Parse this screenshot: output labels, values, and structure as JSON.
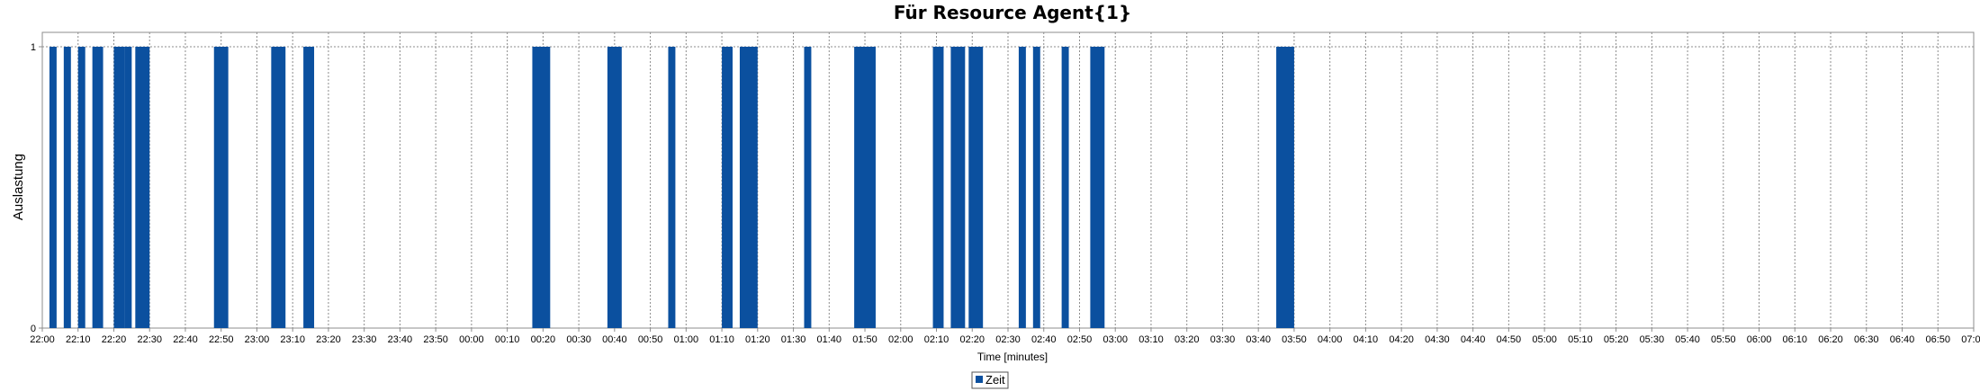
{
  "chart_data": {
    "type": "bar",
    "title": "Für Resource Agent{1}",
    "xlabel": "Time [minutes]",
    "ylabel": "Auslastung",
    "ylim": [
      0,
      1
    ],
    "yticks": [
      "0",
      "1"
    ],
    "x_ticks": [
      "22:00",
      "22:10",
      "22:20",
      "22:30",
      "22:40",
      "22:50",
      "23:00",
      "23:10",
      "23:20",
      "23:30",
      "23:40",
      "23:50",
      "00:00",
      "00:10",
      "00:20",
      "00:30",
      "00:40",
      "00:50",
      "01:00",
      "01:10",
      "01:20",
      "01:30",
      "01:40",
      "01:50",
      "02:00",
      "02:10",
      "02:20",
      "02:30",
      "02:40",
      "02:50",
      "03:00",
      "03:10",
      "03:20",
      "03:30",
      "03:40",
      "03:50",
      "04:00",
      "04:10",
      "04:20",
      "04:30",
      "04:40",
      "04:50",
      "05:00",
      "05:10",
      "05:20",
      "05:30",
      "05:40",
      "05:50",
      "06:00",
      "06:10",
      "06:20",
      "06:30",
      "06:40",
      "06:50",
      "07:00"
    ],
    "grid": true,
    "legend_position": "bottom-center",
    "series": [
      {
        "name": "Zeit",
        "color": "#0b509f",
        "bars": [
          {
            "start": "22:02",
            "end": "22:04",
            "value": 1
          },
          {
            "start": "22:06",
            "end": "22:08",
            "value": 1
          },
          {
            "start": "22:10",
            "end": "22:12",
            "value": 1
          },
          {
            "start": "22:14",
            "end": "22:17",
            "value": 1
          },
          {
            "start": "22:20",
            "end": "22:23",
            "value": 1
          },
          {
            "start": "22:23",
            "end": "22:25",
            "value": 1
          },
          {
            "start": "22:26",
            "end": "22:30",
            "value": 1
          },
          {
            "start": "22:48",
            "end": "22:52",
            "value": 1
          },
          {
            "start": "23:04",
            "end": "23:08",
            "value": 1
          },
          {
            "start": "23:13",
            "end": "23:16",
            "value": 1
          },
          {
            "start": "00:17",
            "end": "00:22",
            "value": 1
          },
          {
            "start": "00:38",
            "end": "00:42",
            "value": 1
          },
          {
            "start": "00:55",
            "end": "00:57",
            "value": 1
          },
          {
            "start": "01:10",
            "end": "01:13",
            "value": 1
          },
          {
            "start": "01:15",
            "end": "01:20",
            "value": 1
          },
          {
            "start": "01:33",
            "end": "01:35",
            "value": 1
          },
          {
            "start": "01:47",
            "end": "01:53",
            "value": 1
          },
          {
            "start": "02:09",
            "end": "02:12",
            "value": 1
          },
          {
            "start": "02:14",
            "end": "02:18",
            "value": 1
          },
          {
            "start": "02:19",
            "end": "02:23",
            "value": 1
          },
          {
            "start": "02:33",
            "end": "02:35",
            "value": 1
          },
          {
            "start": "02:37",
            "end": "02:39",
            "value": 1
          },
          {
            "start": "02:45",
            "end": "02:47",
            "value": 1
          },
          {
            "start": "02:53",
            "end": "02:57",
            "value": 1
          },
          {
            "start": "03:45",
            "end": "03:50",
            "value": 1
          }
        ]
      }
    ]
  }
}
